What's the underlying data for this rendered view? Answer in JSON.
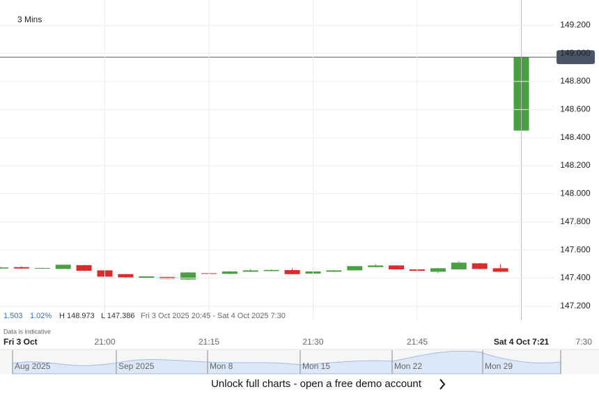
{
  "chart_data": {
    "type": "candlestick",
    "title": "3 Mins",
    "categories": [
      "Fri 3 Oct",
      null,
      null,
      null,
      null,
      "21:00",
      null,
      null,
      null,
      null,
      "21:15",
      null,
      null,
      null,
      null,
      "21:30",
      null,
      null,
      null,
      null,
      "21:45",
      null,
      null,
      null,
      null,
      "Sat 4 Oct 7:21",
      null,
      null,
      "7:30"
    ],
    "open": [
      147.468,
      147.478,
      147.468,
      147.465,
      147.492,
      147.455,
      147.428,
      147.4,
      147.408,
      147.39,
      147.435,
      147.43,
      147.445,
      147.45,
      147.457,
      147.432,
      147.445,
      147.455,
      147.478,
      147.49,
      147.462,
      147.445,
      147.462,
      147.505,
      147.47,
      148.45,
      null,
      null,
      null
    ],
    "high": [
      147.48,
      147.482,
      147.474,
      147.497,
      147.494,
      147.457,
      147.43,
      147.414,
      147.41,
      147.442,
      147.44,
      147.45,
      147.465,
      147.462,
      147.47,
      147.45,
      147.457,
      147.487,
      147.5,
      147.492,
      147.464,
      147.472,
      147.52,
      147.507,
      147.5,
      148.973,
      null,
      null,
      null
    ],
    "low": [
      147.465,
      147.466,
      147.466,
      147.463,
      147.45,
      147.4,
      147.403,
      147.398,
      147.393,
      147.386,
      147.428,
      147.428,
      147.443,
      147.448,
      147.426,
      147.43,
      147.443,
      147.453,
      147.476,
      147.46,
      147.44,
      147.435,
      147.46,
      147.463,
      147.443,
      148.45,
      null,
      null,
      null
    ],
    "close": [
      147.476,
      147.468,
      147.472,
      147.495,
      147.452,
      147.41,
      147.405,
      147.412,
      147.395,
      147.44,
      147.43,
      147.447,
      147.455,
      147.458,
      147.428,
      147.447,
      147.455,
      147.485,
      147.49,
      147.462,
      147.452,
      147.47,
      147.51,
      147.465,
      147.445,
      148.973,
      null,
      null,
      null
    ],
    "up_color": "#4aa040",
    "down_color": "#dd2a2a",
    "ylim": [
      147.1,
      149.38
    ],
    "yticks": [
      {
        "value": 147.2,
        "label": "147.200"
      },
      {
        "value": 147.4,
        "label": "147.400"
      },
      {
        "value": 147.6,
        "label": "147.600"
      },
      {
        "value": 147.8,
        "label": "147.800"
      },
      {
        "value": 148.0,
        "label": "148.000"
      },
      {
        "value": 148.2,
        "label": "148.200"
      },
      {
        "value": 148.4,
        "label": "148.400"
      },
      {
        "value": 148.6,
        "label": "148.600"
      },
      {
        "value": 148.8,
        "label": "148.800"
      },
      {
        "value": 149.0,
        "label": "149.000"
      },
      {
        "value": 149.2,
        "label": "149.200"
      }
    ],
    "last_price": 148.973,
    "grid": true
  },
  "stats": {
    "change": "1.503",
    "change_pct": "1.02%",
    "high": "H 148.973",
    "low": "L 147.386",
    "range": "Fri 3 Oct 2025 20:45 - Sat 4 Oct 2025 7:30",
    "note": "Data is indicative"
  },
  "navigator": {
    "labels": [
      "Aug 2025",
      "Sep 2025",
      "Mon 8",
      "Mon 15",
      "Mon 22",
      "Mon 29"
    ]
  },
  "footer": {
    "cta": "Unlock full charts - open a free demo account"
  }
}
